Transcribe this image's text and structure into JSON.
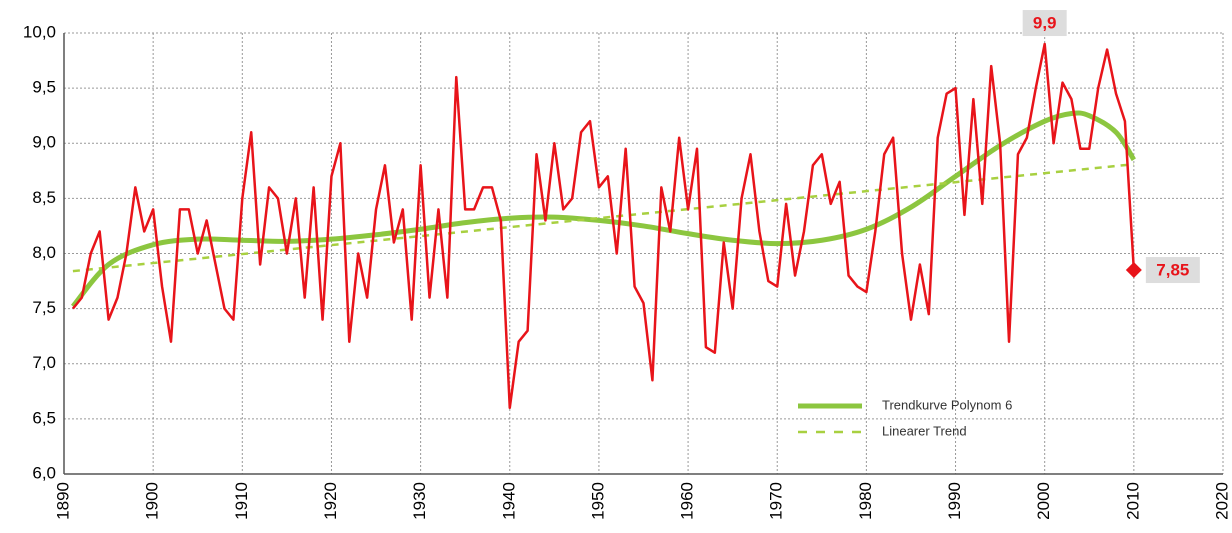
{
  "chart_data": {
    "type": "line",
    "xlim": [
      1890,
      2020
    ],
    "xticks": [
      1890,
      1900,
      1910,
      1920,
      1930,
      1940,
      1950,
      1960,
      1970,
      1980,
      1990,
      2000,
      2010,
      2020
    ],
    "ylim": [
      6,
      10
    ],
    "yticks": [
      {
        "value": 6,
        "label": "6,0"
      },
      {
        "value": 6.5,
        "label": "6,5"
      },
      {
        "value": 7,
        "label": "7,0"
      },
      {
        "value": 7.5,
        "label": "7,5"
      },
      {
        "value": 8,
        "label": "8,0"
      },
      {
        "value": 8.5,
        "label": "8,5"
      },
      {
        "value": 9,
        "label": "9,0"
      },
      {
        "value": 9.5,
        "label": "9,5"
      },
      {
        "value": 10,
        "label": "10,0"
      }
    ],
    "grid": true,
    "legend": "lower right",
    "series": [
      {
        "color": "#e8141a",
        "x": [
          1891,
          1892,
          1893,
          1894,
          1895,
          1896,
          1897,
          1898,
          1899,
          1900,
          1901,
          1902,
          1903,
          1904,
          1905,
          1906,
          1907,
          1908,
          1909,
          1910,
          1911,
          1912,
          1913,
          1914,
          1915,
          1916,
          1917,
          1918,
          1919,
          1920,
          1921,
          1922,
          1923,
          1924,
          1925,
          1926,
          1927,
          1928,
          1929,
          1930,
          1931,
          1932,
          1933,
          1934,
          1935,
          1936,
          1937,
          1938,
          1939,
          1940,
          1941,
          1942,
          1943,
          1944,
          1945,
          1946,
          1947,
          1948,
          1949,
          1950,
          1951,
          1952,
          1953,
          1954,
          1955,
          1956,
          1957,
          1958,
          1959,
          1960,
          1961,
          1962,
          1963,
          1964,
          1965,
          1966,
          1967,
          1968,
          1969,
          1970,
          1971,
          1972,
          1973,
          1974,
          1975,
          1976,
          1977,
          1978,
          1979,
          1980,
          1981,
          1982,
          1983,
          1984,
          1985,
          1986,
          1987,
          1988,
          1989,
          1990,
          1991,
          1992,
          1993,
          1994,
          1995,
          1996,
          1997,
          1998,
          1999,
          2000,
          2001,
          2002,
          2003,
          2004,
          2005,
          2006,
          2007,
          2008,
          2009,
          2010
        ],
        "values": [
          7.5,
          7.6,
          8.0,
          8.2,
          7.4,
          7.6,
          8.0,
          8.6,
          8.2,
          8.4,
          7.7,
          7.2,
          8.4,
          8.4,
          8.0,
          8.3,
          7.9,
          7.5,
          7.4,
          8.5,
          9.1,
          7.9,
          8.6,
          8.5,
          8.0,
          8.5,
          7.6,
          8.6,
          7.4,
          8.7,
          9.0,
          7.2,
          8.0,
          7.6,
          8.4,
          8.8,
          8.1,
          8.4,
          7.4,
          8.8,
          7.6,
          8.4,
          7.6,
          9.6,
          8.4,
          8.4,
          8.6,
          8.6,
          8.3,
          6.6,
          7.2,
          7.3,
          8.9,
          8.3,
          9.0,
          8.4,
          8.5,
          9.1,
          9.2,
          8.6,
          8.7,
          8.0,
          8.95,
          7.7,
          7.55,
          6.85,
          8.6,
          8.2,
          9.05,
          8.4,
          8.95,
          7.15,
          7.1,
          8.1,
          7.5,
          8.5,
          8.9,
          8.2,
          7.75,
          7.7,
          8.45,
          7.8,
          8.2,
          8.8,
          8.9,
          8.45,
          8.65,
          7.8,
          7.7,
          7.65,
          8.2,
          8.9,
          9.05,
          8.0,
          7.4,
          7.9,
          7.45,
          9.05,
          9.45,
          9.5,
          8.35,
          9.4,
          8.45,
          9.7,
          9.0,
          7.2,
          8.9,
          9.05,
          9.5,
          9.9,
          9.0,
          9.55,
          9.4,
          8.95,
          8.95,
          9.5,
          9.85,
          9.45,
          9.2,
          7.85
        ]
      },
      {
        "name": "Trendkurve Polynom 6",
        "color": "#8cc63f",
        "style": "solid",
        "x": [
          1891,
          1895,
          1900,
          1905,
          1910,
          1915,
          1920,
          1925,
          1930,
          1935,
          1940,
          1945,
          1950,
          1955,
          1960,
          1965,
          1970,
          1975,
          1980,
          1985,
          1990,
          1995,
          2000,
          2003,
          2005,
          2008,
          2010
        ],
        "values": [
          7.52,
          7.9,
          8.08,
          8.13,
          8.12,
          8.11,
          8.13,
          8.17,
          8.22,
          8.28,
          8.32,
          8.33,
          8.3,
          8.25,
          8.18,
          8.12,
          8.09,
          8.12,
          8.22,
          8.42,
          8.7,
          8.98,
          9.2,
          9.27,
          9.25,
          9.1,
          8.85
        ]
      },
      {
        "name": "Linearer Trend",
        "color": "#a8d040",
        "style": "dashed",
        "x": [
          1891,
          2010
        ],
        "values": [
          7.84,
          8.81
        ]
      }
    ],
    "annotations": [
      {
        "x": 2000,
        "y": 9.9,
        "label": "9,9",
        "position": "above"
      },
      {
        "x": 2010,
        "y": 7.85,
        "label": "7,85",
        "position": "right",
        "marker": "diamond"
      }
    ]
  }
}
